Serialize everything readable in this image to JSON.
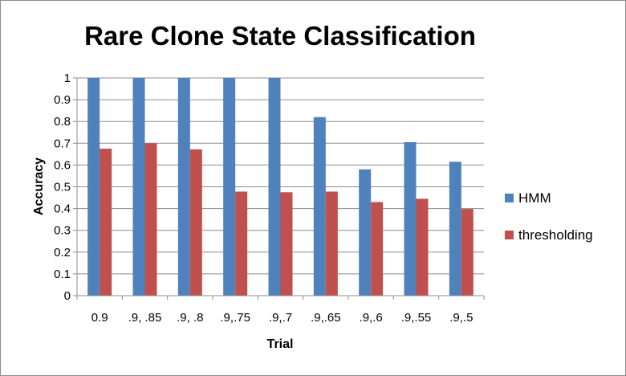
{
  "chart_data": {
    "type": "bar",
    "title": "Rare Clone State Classification",
    "xlabel": "Trial",
    "ylabel": "Accuracy",
    "categories": [
      "0.9",
      ".9, .85",
      ".9, .8",
      ".9,.75",
      ".9,.7",
      ".9,.65",
      ".9,.6",
      ".9,.55",
      ".9,.5"
    ],
    "series": [
      {
        "name": "HMM",
        "color": "#4f81bd",
        "values": [
          1.0,
          1.0,
          1.0,
          1.0,
          1.0,
          0.82,
          0.58,
          0.705,
          0.615
        ]
      },
      {
        "name": "thresholding",
        "color": "#c0504d",
        "values": [
          0.675,
          0.7,
          0.672,
          0.478,
          0.475,
          0.478,
          0.43,
          0.445,
          0.398
        ]
      }
    ],
    "ylim": [
      0,
      1
    ],
    "yticks": [
      0,
      0.1,
      0.2,
      0.3,
      0.4,
      0.5,
      0.6,
      0.7,
      0.8,
      0.9,
      1
    ],
    "ytick_labels": [
      "0",
      "0.1",
      "0.2",
      "0.3",
      "0.4",
      "0.5",
      "0.6",
      "0.7",
      "0.8",
      "0.9",
      "1"
    ],
    "grid": "horizontal",
    "legend_position": "right"
  }
}
